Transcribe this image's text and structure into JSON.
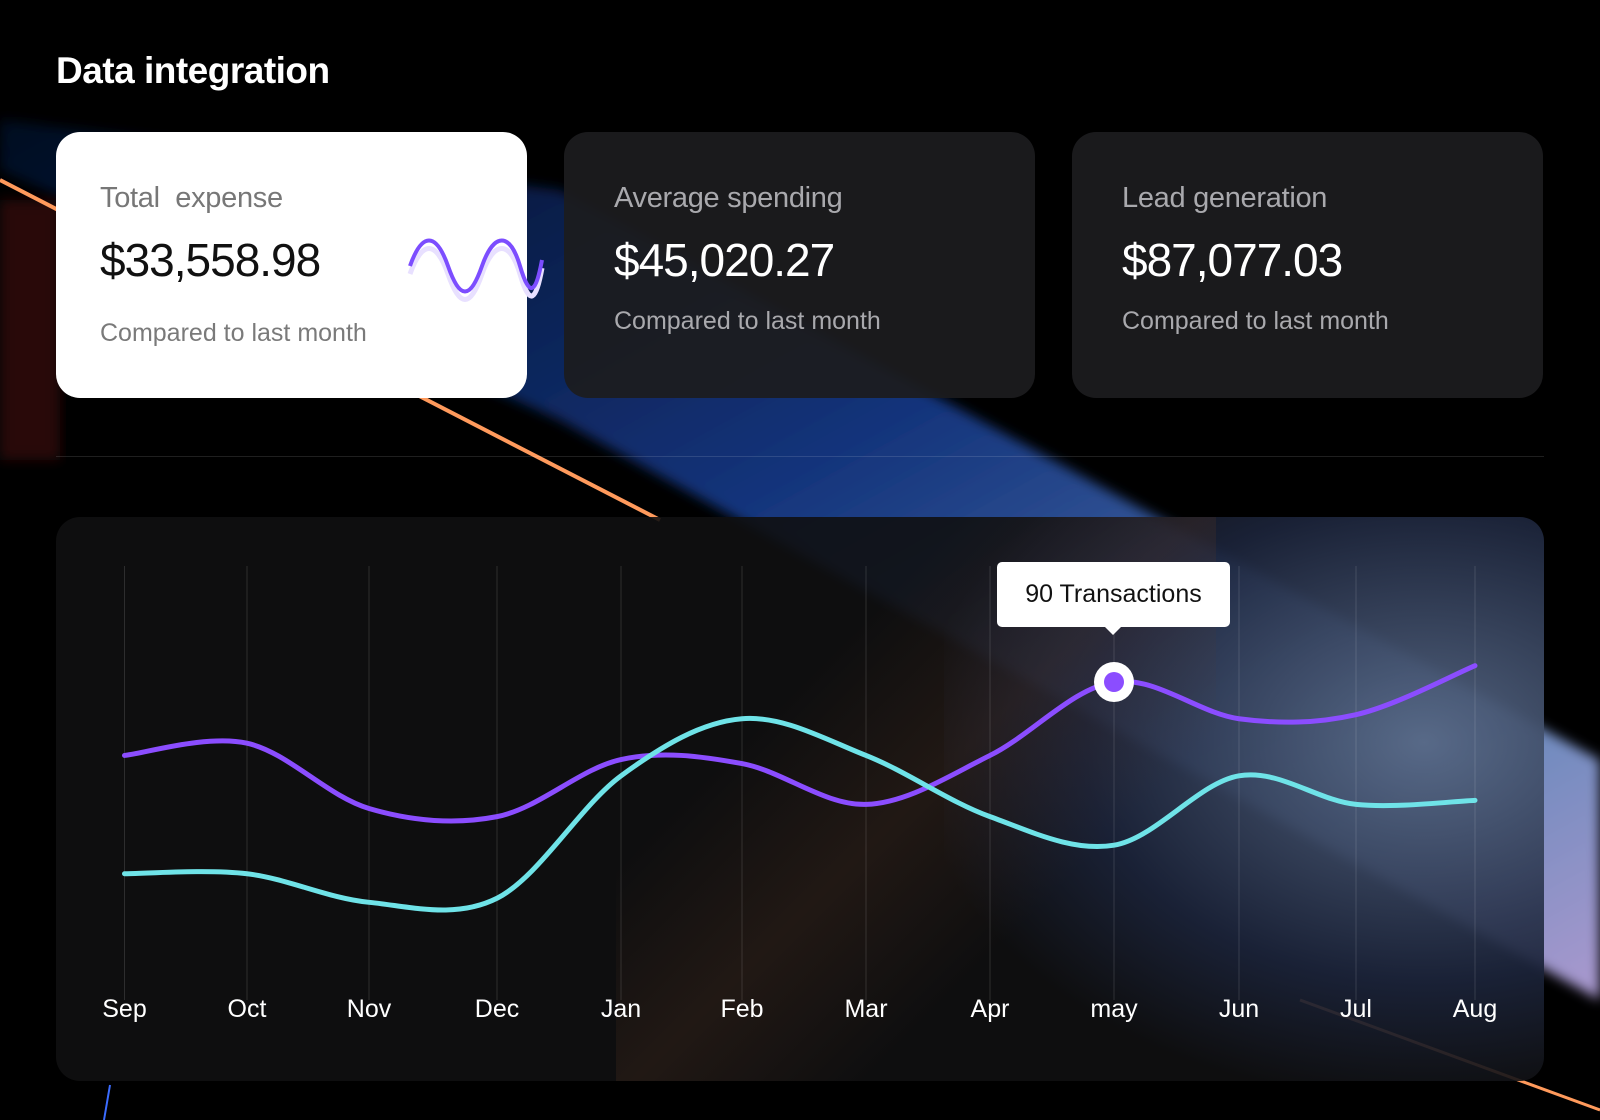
{
  "header": {
    "title": "Data integration"
  },
  "cards": [
    {
      "label": "Total  expense",
      "value": "$33,558.98",
      "subtitle": "Compared to last month",
      "theme": "light",
      "sparkline_color": "#7c4dff"
    },
    {
      "label": "Average spending",
      "value": "$45,020.27",
      "subtitle": "Compared to last month",
      "theme": "dark"
    },
    {
      "label": "Lead generation",
      "value": "$87,077.03",
      "subtitle": "Compared to last month",
      "theme": "dark"
    }
  ],
  "chart_data": {
    "type": "line",
    "categories": [
      "Sep",
      "Oct",
      "Nov",
      "Dec",
      "Jan",
      "Feb",
      "Mar",
      "Apr",
      "may",
      "Jun",
      "Jul",
      "Aug"
    ],
    "series": [
      {
        "color": "#8b4dff",
        "values": [
          72,
          75,
          59,
          57,
          71,
          70,
          60,
          72,
          90,
          81,
          82,
          94
        ]
      },
      {
        "color": "#6fe3e8",
        "values": [
          43,
          43,
          36,
          37,
          67,
          81,
          72,
          57,
          50,
          67,
          60,
          61
        ]
      }
    ],
    "tooltip": {
      "category": "may",
      "series": 0,
      "text": "90 Transactions"
    },
    "grid": "vertical",
    "xlabel": "",
    "ylabel": ""
  }
}
